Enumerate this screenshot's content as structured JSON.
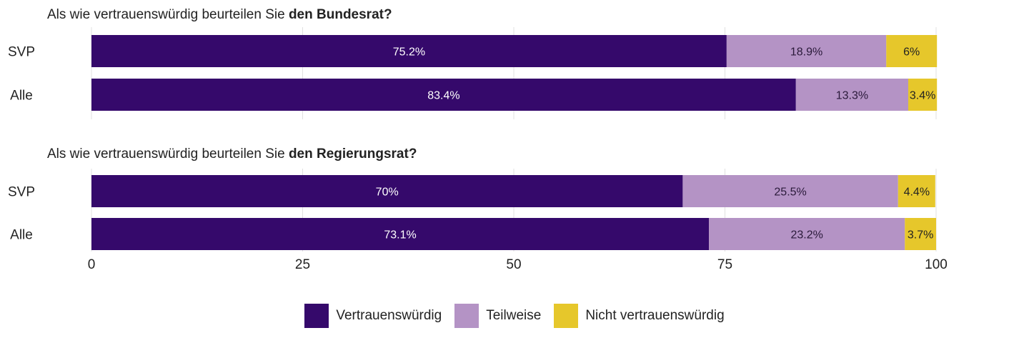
{
  "colors": {
    "vertrauenswuerdig": "#35096b",
    "teilweise": "#b493c5",
    "nicht": "#e6c72b"
  },
  "legend": [
    {
      "label": "Vertrauenswürdig",
      "color": "#35096b"
    },
    {
      "label": "Teilweise",
      "color": "#b493c5"
    },
    {
      "label": "Nicht vertrauenswürdig",
      "color": "#e6c72b"
    }
  ],
  "chart_data": {
    "type": "bar",
    "orientation": "horizontal",
    "stacked": true,
    "xlim": [
      0,
      100
    ],
    "xticks": [
      0,
      25,
      50,
      75,
      100
    ],
    "grid": true,
    "legend_position": "bottom",
    "panels": [
      {
        "title_prefix": "Als wie vertrauenswürdig beurteilen Sie ",
        "title_bold": "den Bundesrat?",
        "categories": [
          "SVP",
          "Alle"
        ],
        "series": [
          {
            "name": "Vertrauenswürdig",
            "values": [
              75.2,
              83.4
            ],
            "labels": [
              "75.2%",
              "83.4%"
            ]
          },
          {
            "name": "Teilweise",
            "values": [
              18.9,
              13.3
            ],
            "labels": [
              "18.9%",
              "13.3%"
            ]
          },
          {
            "name": "Nicht vertrauenswürdig",
            "values": [
              6,
              3.4
            ],
            "labels": [
              "6%",
              "3.4%"
            ]
          }
        ]
      },
      {
        "title_prefix": "Als wie vertrauenswürdig beurteilen Sie ",
        "title_bold": "den Regierungsrat?",
        "categories": [
          "SVP",
          "Alle"
        ],
        "series": [
          {
            "name": "Vertrauenswürdig",
            "values": [
              70,
              73.1
            ],
            "labels": [
              "70%",
              "73.1%"
            ]
          },
          {
            "name": "Teilweise",
            "values": [
              25.5,
              23.2
            ],
            "labels": [
              "25.5%",
              "23.2%"
            ]
          },
          {
            "name": "Nicht vertrauenswürdig",
            "values": [
              4.4,
              3.7
            ],
            "labels": [
              "4.4%",
              "3.7%"
            ]
          }
        ]
      }
    ]
  }
}
